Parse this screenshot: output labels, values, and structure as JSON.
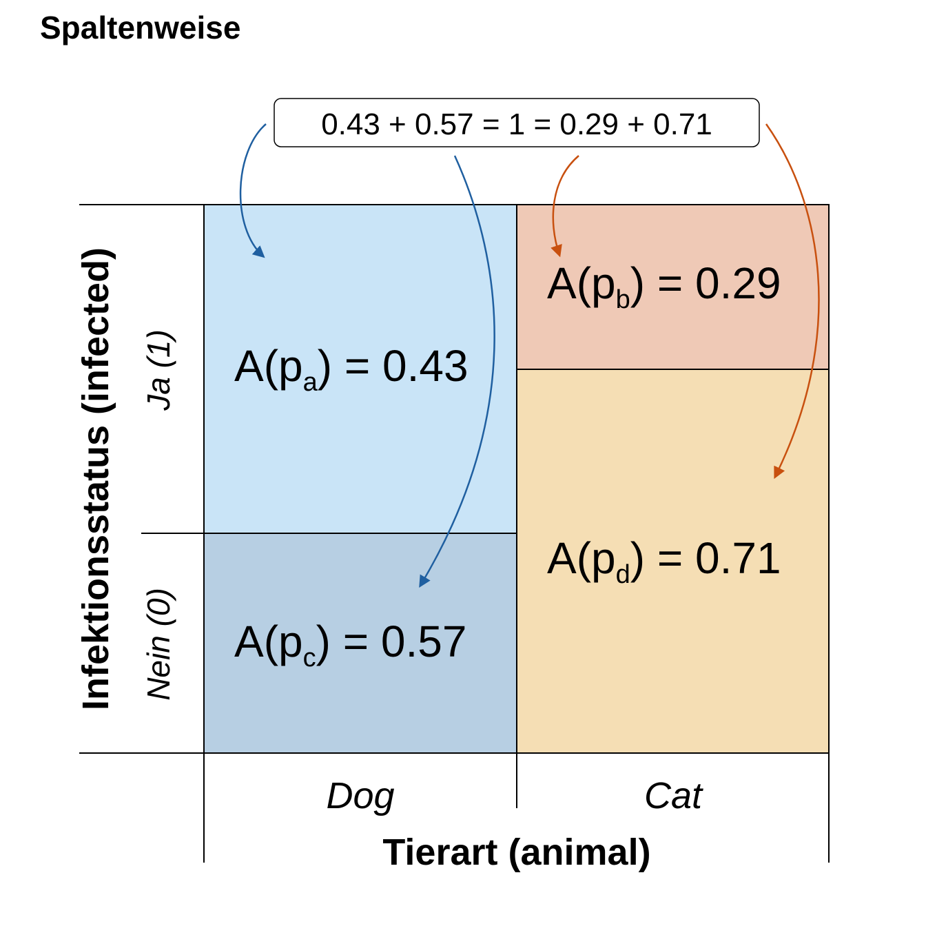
{
  "title": "Spaltenweise",
  "equation": "0.43 + 0.57 = 1 = 0.29 + 0.71",
  "colors": {
    "cell_a": "#c9e4f7",
    "cell_c": "#b7cfe3",
    "cell_b": "#efc9b6",
    "cell_d": "#f5deb4",
    "arrow_blue": "#1f5fa0",
    "arrow_orange": "#c8500f"
  },
  "cells": {
    "a": {
      "prefix": "A(p",
      "sub": "a",
      "suffix": ") = 0.43",
      "value": 0.43
    },
    "b": {
      "prefix": "A(p",
      "sub": "b",
      "suffix": ") = 0.29",
      "value": 0.29
    },
    "c": {
      "prefix": "A(p",
      "sub": "c",
      "suffix": ") = 0.57",
      "value": 0.57
    },
    "d": {
      "prefix": "A(p",
      "sub": "d",
      "suffix": ") = 0.71",
      "value": 0.71
    }
  },
  "y_axis": {
    "title": "Infektionsstatus (infected)",
    "rows": [
      "Ja (1)",
      "Nein (0)"
    ]
  },
  "x_axis": {
    "title": "Tierart (animal)",
    "columns": [
      "Dog",
      "Cat"
    ]
  }
}
